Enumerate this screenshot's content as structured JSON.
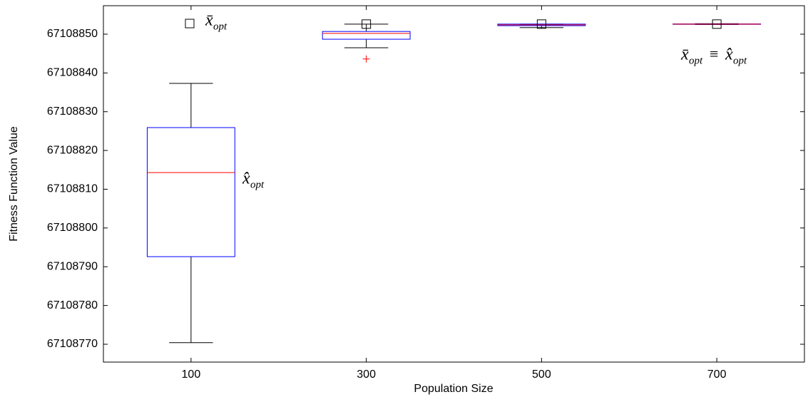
{
  "chart_data": {
    "type": "box",
    "categories": [
      "100",
      "300",
      "500",
      "700"
    ],
    "xlabel": "Population Size",
    "ylabel": "Fitness Function Value",
    "ylim": [
      67108765.4,
      67108857.35
    ],
    "yticks": [
      67108770,
      67108780,
      67108790,
      67108800,
      67108810,
      67108820,
      67108830,
      67108840,
      67108850
    ],
    "boxes": [
      {
        "whislo": 67108770.4,
        "q1": 67108792.6,
        "median": 67108814.3,
        "q3": 67108825.9,
        "whishi": 67108837.3,
        "fliers": []
      },
      {
        "whislo": 67108846.5,
        "q1": 67108848.7,
        "median": 67108850.2,
        "q3": 67108850.7,
        "whishi": 67108852.6,
        "fliers": [
          67108843.6
        ]
      },
      {
        "whislo": 67108851.7,
        "q1": 67108852.2,
        "median": 67108852.4,
        "q3": 67108852.6,
        "whishi": 67108852.6,
        "fliers": []
      },
      {
        "whislo": 67108852.5,
        "q1": 67108852.55,
        "median": 67108852.6,
        "q3": 67108852.65,
        "whishi": 67108852.7,
        "fliers": []
      }
    ],
    "means": [
      null,
      67108852.6,
      67108852.6,
      67108852.6
    ],
    "box_color": "#0000ff",
    "median_color": "#ff0000",
    "whisker_color": "#000000",
    "flier_color": "#ff0000",
    "annotations": [
      {
        "parts": [
          {
            "text": "x̄",
            "sub": "opt"
          }
        ]
      },
      {
        "parts": [
          {
            "text": "x̂",
            "sub": "opt"
          }
        ]
      },
      {
        "parts": [
          {
            "text": "x̄",
            "sub": "opt"
          },
          {
            "text": "≡"
          },
          {
            "text": "x̂",
            "sub": "opt"
          }
        ]
      }
    ]
  }
}
